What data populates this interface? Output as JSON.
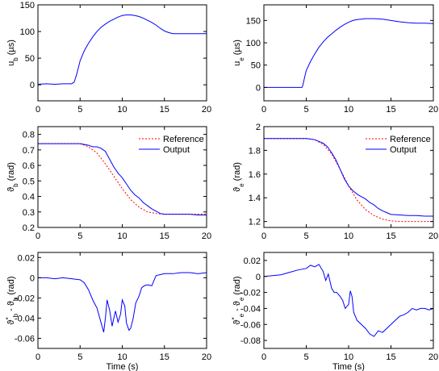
{
  "colors": {
    "reference": "#ff0000",
    "output": "#0000ff",
    "axis": "#000000"
  },
  "legend": {
    "reference": "Reference",
    "output": "Output"
  },
  "chart_data": [
    {
      "id": "ub",
      "type": "line",
      "ylabel": "u_b (µs)",
      "xlabel": "",
      "xlim": [
        0,
        20
      ],
      "ylim": [
        -30,
        150
      ],
      "xticks": [
        0,
        5,
        10,
        15,
        20
      ],
      "yticks": [
        0,
        50,
        100,
        150
      ],
      "grid": false,
      "legend": null,
      "series": [
        {
          "role": "output",
          "x": [
            0,
            1,
            2,
            3,
            4,
            4.3,
            4.6,
            5,
            5.5,
            6,
            6.5,
            7,
            7.5,
            8,
            8.5,
            9,
            9.5,
            10,
            10.5,
            11,
            11.5,
            12,
            12.5,
            13,
            13.5,
            14,
            14.5,
            15,
            15.5,
            16,
            17,
            18,
            19,
            20
          ],
          "y": [
            1,
            2,
            1,
            2,
            2,
            5,
            20,
            45,
            64,
            78,
            90,
            100,
            108,
            114,
            119,
            123,
            127,
            130,
            131,
            131,
            130,
            128,
            125,
            121,
            117,
            112,
            106,
            101,
            98,
            96,
            96,
            96,
            96,
            96
          ]
        }
      ]
    },
    {
      "id": "ue",
      "type": "line",
      "ylabel": "u_e (µs)",
      "xlabel": "",
      "xlim": [
        0,
        20
      ],
      "ylim": [
        -30,
        185
      ],
      "xticks": [
        0,
        5,
        10,
        15,
        20
      ],
      "yticks": [
        0,
        50,
        100,
        150
      ],
      "grid": false,
      "legend": null,
      "series": [
        {
          "role": "output",
          "x": [
            0,
            1,
            2,
            3,
            4,
            4.5,
            4.6,
            4.8,
            5,
            5.5,
            6,
            6.5,
            7,
            7.5,
            8,
            8.5,
            9,
            9.5,
            10,
            10.5,
            11,
            11.5,
            12,
            12.5,
            13,
            14,
            15,
            16,
            17,
            18,
            19,
            20
          ],
          "y": [
            0,
            0,
            0,
            0,
            0,
            0,
            5,
            22,
            38,
            58,
            75,
            90,
            102,
            112,
            120,
            128,
            135,
            141,
            146,
            150,
            152,
            153,
            154,
            154,
            154,
            153,
            150,
            147,
            145,
            144,
            144,
            143
          ]
        }
      ]
    },
    {
      "id": "theta_b",
      "type": "line",
      "ylabel": "ϑ_b (rad)",
      "xlabel": "",
      "xlim": [
        0,
        20
      ],
      "ylim": [
        0.2,
        0.85
      ],
      "xticks": [
        0,
        5,
        10,
        15,
        20
      ],
      "yticks": [
        0.2,
        0.3,
        0.4,
        0.5,
        0.6,
        0.7,
        0.8
      ],
      "grid": false,
      "legend": "top-right",
      "series": [
        {
          "role": "reference",
          "x": [
            0,
            4,
            5,
            6,
            7,
            8,
            9,
            10,
            11,
            12,
            13,
            14,
            15,
            16,
            17,
            18,
            19,
            20
          ],
          "y": [
            0.74,
            0.74,
            0.74,
            0.72,
            0.68,
            0.61,
            0.53,
            0.45,
            0.38,
            0.33,
            0.3,
            0.29,
            0.285,
            0.285,
            0.285,
            0.285,
            0.285,
            0.285
          ]
        },
        {
          "role": "output",
          "x": [
            0,
            4,
            5,
            6,
            6.5,
            7,
            7.5,
            8,
            8.5,
            9,
            9.5,
            10,
            10.5,
            11,
            11.5,
            12,
            12.5,
            13,
            13.5,
            14,
            14.5,
            15,
            16,
            17,
            18,
            19,
            20
          ],
          "y": [
            0.74,
            0.74,
            0.74,
            0.73,
            0.72,
            0.72,
            0.71,
            0.69,
            0.64,
            0.59,
            0.55,
            0.52,
            0.48,
            0.44,
            0.41,
            0.39,
            0.36,
            0.34,
            0.32,
            0.305,
            0.29,
            0.285,
            0.285,
            0.285,
            0.285,
            0.28,
            0.28
          ]
        }
      ]
    },
    {
      "id": "theta_e",
      "type": "line",
      "ylabel": "ϑ_e (rad)",
      "xlabel": "",
      "xlim": [
        0,
        20
      ],
      "ylim": [
        1.15,
        2.0
      ],
      "xticks": [
        0,
        5,
        10,
        15,
        20
      ],
      "yticks": [
        1.2,
        1.4,
        1.6,
        1.8,
        2
      ],
      "grid": false,
      "legend": "top-right",
      "series": [
        {
          "role": "reference",
          "x": [
            0,
            4,
            5,
            6,
            7,
            8,
            9,
            10,
            11,
            12,
            13,
            14,
            15,
            16,
            17,
            18,
            19,
            20
          ],
          "y": [
            1.9,
            1.9,
            1.9,
            1.89,
            1.85,
            1.77,
            1.64,
            1.5,
            1.38,
            1.3,
            1.25,
            1.22,
            1.205,
            1.2,
            1.2,
            1.2,
            1.2,
            1.2
          ]
        },
        {
          "role": "output",
          "x": [
            0,
            4,
            5,
            6,
            7,
            7.5,
            8,
            8.5,
            9,
            9.5,
            10,
            10.5,
            11,
            11.5,
            12,
            12.5,
            13,
            13.5,
            14,
            14.5,
            15,
            16,
            17,
            18,
            19,
            20
          ],
          "y": [
            1.9,
            1.9,
            1.9,
            1.89,
            1.86,
            1.83,
            1.78,
            1.72,
            1.64,
            1.56,
            1.5,
            1.46,
            1.43,
            1.41,
            1.39,
            1.36,
            1.34,
            1.31,
            1.29,
            1.275,
            1.26,
            1.255,
            1.25,
            1.25,
            1.245,
            1.245
          ]
        }
      ]
    },
    {
      "id": "err_b",
      "type": "line",
      "ylabel": "ϑ*_b - ϑ_b (rad)",
      "xlabel": "Time (s)",
      "xlim": [
        0,
        20
      ],
      "ylim": [
        -0.07,
        0.025
      ],
      "xticks": [
        0,
        5,
        10,
        15,
        20
      ],
      "yticks": [
        -0.06,
        -0.04,
        -0.02,
        0,
        0.02
      ],
      "grid": false,
      "legend": null,
      "series": [
        {
          "role": "output",
          "x": [
            0,
            1,
            2,
            3,
            4,
            5,
            5.5,
            6,
            6.5,
            7,
            7.5,
            7.8,
            8,
            8.2,
            8.5,
            8.8,
            9,
            9.2,
            9.5,
            9.8,
            10,
            10.3,
            10.5,
            10.8,
            11,
            11.3,
            11.6,
            12,
            12.3,
            12.6,
            13,
            13.5,
            14,
            15,
            16,
            17,
            18,
            19,
            20
          ],
          "y": [
            0,
            0,
            -0.001,
            0,
            -0.001,
            -0.002,
            -0.005,
            -0.012,
            -0.022,
            -0.03,
            -0.045,
            -0.054,
            -0.04,
            -0.022,
            -0.032,
            -0.048,
            -0.04,
            -0.033,
            -0.044,
            -0.036,
            -0.022,
            -0.028,
            -0.045,
            -0.052,
            -0.05,
            -0.04,
            -0.025,
            -0.018,
            -0.01,
            -0.008,
            -0.007,
            -0.008,
            0.002,
            0.004,
            0.004,
            0.005,
            0.005,
            0.004,
            0.005
          ]
        }
      ]
    },
    {
      "id": "err_e",
      "type": "line",
      "ylabel": "ϑ*_e - ϑ_e (rad)",
      "xlabel": "Time (s)",
      "xlim": [
        0,
        20
      ],
      "ylim": [
        -0.09,
        0.03
      ],
      "xticks": [
        0,
        5,
        10,
        15,
        20
      ],
      "yticks": [
        -0.08,
        -0.06,
        -0.04,
        -0.02,
        0,
        0.02
      ],
      "grid": false,
      "legend": null,
      "series": [
        {
          "role": "output",
          "x": [
            0,
            1,
            2,
            3,
            4,
            5,
            5.5,
            6,
            6.5,
            7,
            7.3,
            7.6,
            8,
            8.3,
            8.6,
            9,
            9.3,
            9.6,
            10,
            10.2,
            10.4,
            10.6,
            11,
            11.5,
            12,
            12.5,
            13,
            13.5,
            14,
            14.5,
            15,
            15.5,
            16,
            16.5,
            17,
            17.5,
            18,
            18.5,
            19,
            19.5,
            20
          ],
          "y": [
            0,
            0.001,
            0.002,
            0.005,
            0.008,
            0.01,
            0.014,
            0.012,
            0.015,
            0.006,
            -0.005,
            0.003,
            -0.015,
            -0.02,
            -0.02,
            -0.025,
            -0.03,
            -0.04,
            -0.035,
            -0.018,
            -0.025,
            -0.045,
            -0.055,
            -0.06,
            -0.065,
            -0.072,
            -0.075,
            -0.068,
            -0.07,
            -0.065,
            -0.06,
            -0.055,
            -0.05,
            -0.048,
            -0.045,
            -0.04,
            -0.042,
            -0.04,
            -0.04,
            -0.042,
            -0.04
          ]
        }
      ]
    }
  ]
}
